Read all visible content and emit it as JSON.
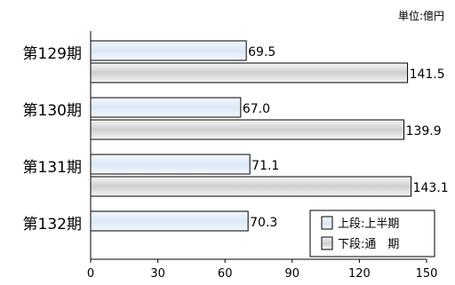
{
  "chart_data": {
    "type": "bar",
    "orientation": "horizontal",
    "unit": "単位:億円",
    "categories": [
      "第129期",
      "第130期",
      "第131期",
      "第132期"
    ],
    "series": [
      {
        "name": "上段:上半期",
        "values": [
          69.5,
          67.0,
          71.1,
          70.3
        ],
        "labels": [
          "69.5",
          "67.0",
          "71.1",
          "70.3"
        ],
        "color": "#dde9f7",
        "gradient_end": "#f2f7fd"
      },
      {
        "name": "下段:通　期",
        "values": [
          141.5,
          139.9,
          143.1,
          null
        ],
        "labels": [
          "141.5",
          "139.9",
          "143.1",
          ""
        ],
        "color": "#d4d4d4",
        "gradient_end": "#f5f5f5"
      }
    ],
    "xlim": [
      0,
      150
    ],
    "xticks": [
      0,
      30,
      60,
      90,
      120,
      150
    ],
    "xtick_labels": [
      "0",
      "30",
      "60",
      "90",
      "120",
      "150"
    ],
    "grid": false,
    "legend_position": "bottom-right"
  }
}
